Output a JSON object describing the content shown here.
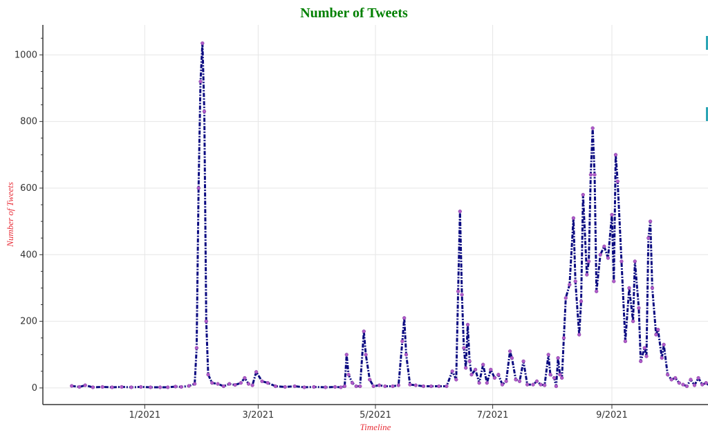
{
  "chart_data": {
    "type": "line",
    "title": "Number of Tweets",
    "xlabel": "Timeline",
    "ylabel": "Number of Tweets",
    "xlim": [
      "2020-11-09",
      "2021-10-21"
    ],
    "ylim": [
      -50,
      1090
    ],
    "x_ticks": [
      {
        "date": "2021-01-01",
        "label": "1/2021"
      },
      {
        "date": "2021-03-01",
        "label": "3/2021"
      },
      {
        "date": "2021-05-01",
        "label": "5/2021"
      },
      {
        "date": "2021-07-01",
        "label": "7/2021"
      },
      {
        "date": "2021-09-01",
        "label": "9/2021"
      }
    ],
    "y_ticks": [
      0,
      200,
      400,
      600,
      800,
      1000
    ],
    "grid": true,
    "colors": {
      "line": "#0a0a80",
      "marker": "#b05bc9",
      "title": "#008000",
      "axis_label": "#e8303a"
    },
    "series": [
      {
        "points": [
          [
            "2020-11-24",
            6
          ],
          [
            "2020-11-28",
            3
          ],
          [
            "2020-12-01",
            8
          ],
          [
            "2020-12-05",
            2
          ],
          [
            "2020-12-10",
            3
          ],
          [
            "2020-12-15",
            2
          ],
          [
            "2020-12-20",
            3
          ],
          [
            "2020-12-25",
            2
          ],
          [
            "2020-12-30",
            3
          ],
          [
            "2021-01-04",
            2
          ],
          [
            "2021-01-09",
            2
          ],
          [
            "2021-01-13",
            2
          ],
          [
            "2021-01-17",
            4
          ],
          [
            "2021-01-20",
            3
          ],
          [
            "2021-01-24",
            6
          ],
          [
            "2021-01-27",
            12
          ],
          [
            "2021-01-28",
            120
          ],
          [
            "2021-01-29",
            600
          ],
          [
            "2021-01-30",
            920
          ],
          [
            "2021-01-31",
            1035
          ],
          [
            "2021-02-01",
            830
          ],
          [
            "2021-02-02",
            200
          ],
          [
            "2021-02-03",
            40
          ],
          [
            "2021-02-05",
            15
          ],
          [
            "2021-02-08",
            12
          ],
          [
            "2021-02-11",
            5
          ],
          [
            "2021-02-14",
            12
          ],
          [
            "2021-02-17",
            9
          ],
          [
            "2021-02-20",
            15
          ],
          [
            "2021-02-22",
            30
          ],
          [
            "2021-02-24",
            12
          ],
          [
            "2021-02-26",
            8
          ],
          [
            "2021-02-28",
            48
          ],
          [
            "2021-03-03",
            20
          ],
          [
            "2021-03-06",
            15
          ],
          [
            "2021-03-10",
            5
          ],
          [
            "2021-03-15",
            3
          ],
          [
            "2021-03-20",
            5
          ],
          [
            "2021-03-25",
            2
          ],
          [
            "2021-03-30",
            3
          ],
          [
            "2021-04-05",
            2
          ],
          [
            "2021-04-10",
            3
          ],
          [
            "2021-04-13",
            2
          ],
          [
            "2021-04-15",
            5
          ],
          [
            "2021-04-16",
            100
          ],
          [
            "2021-04-17",
            40
          ],
          [
            "2021-04-19",
            15
          ],
          [
            "2021-04-21",
            5
          ],
          [
            "2021-04-23",
            5
          ],
          [
            "2021-04-25",
            170
          ],
          [
            "2021-04-26",
            100
          ],
          [
            "2021-04-28",
            25
          ],
          [
            "2021-04-30",
            5
          ],
          [
            "2021-05-03",
            8
          ],
          [
            "2021-05-06",
            5
          ],
          [
            "2021-05-10",
            5
          ],
          [
            "2021-05-13",
            8
          ],
          [
            "2021-05-15",
            140
          ],
          [
            "2021-05-16",
            210
          ],
          [
            "2021-05-17",
            100
          ],
          [
            "2021-05-19",
            10
          ],
          [
            "2021-05-22",
            8
          ],
          [
            "2021-05-26",
            5
          ],
          [
            "2021-05-30",
            5
          ],
          [
            "2021-06-03",
            5
          ],
          [
            "2021-06-07",
            5
          ],
          [
            "2021-06-10",
            50
          ],
          [
            "2021-06-12",
            25
          ],
          [
            "2021-06-13",
            290
          ],
          [
            "2021-06-14",
            530
          ],
          [
            "2021-06-15",
            280
          ],
          [
            "2021-06-16",
            120
          ],
          [
            "2021-06-17",
            60
          ],
          [
            "2021-06-18",
            190
          ],
          [
            "2021-06-19",
            80
          ],
          [
            "2021-06-20",
            40
          ],
          [
            "2021-06-22",
            55
          ],
          [
            "2021-06-24",
            15
          ],
          [
            "2021-06-26",
            70
          ],
          [
            "2021-06-28",
            15
          ],
          [
            "2021-06-30",
            55
          ],
          [
            "2021-07-02",
            30
          ],
          [
            "2021-07-04",
            40
          ],
          [
            "2021-07-06",
            10
          ],
          [
            "2021-07-08",
            20
          ],
          [
            "2021-07-10",
            110
          ],
          [
            "2021-07-11",
            90
          ],
          [
            "2021-07-13",
            25
          ],
          [
            "2021-07-15",
            20
          ],
          [
            "2021-07-17",
            80
          ],
          [
            "2021-07-19",
            10
          ],
          [
            "2021-07-22",
            10
          ],
          [
            "2021-07-24",
            20
          ],
          [
            "2021-07-26",
            10
          ],
          [
            "2021-07-28",
            8
          ],
          [
            "2021-07-30",
            100
          ],
          [
            "2021-07-31",
            40
          ],
          [
            "2021-08-02",
            30
          ],
          [
            "2021-08-03",
            5
          ],
          [
            "2021-08-04",
            90
          ],
          [
            "2021-08-05",
            40
          ],
          [
            "2021-08-06",
            30
          ],
          [
            "2021-08-07",
            150
          ],
          [
            "2021-08-08",
            270
          ],
          [
            "2021-08-10",
            310
          ],
          [
            "2021-08-12",
            510
          ],
          [
            "2021-08-13",
            320
          ],
          [
            "2021-08-15",
            160
          ],
          [
            "2021-08-16",
            260
          ],
          [
            "2021-08-17",
            580
          ],
          [
            "2021-08-19",
            340
          ],
          [
            "2021-08-20",
            380
          ],
          [
            "2021-08-21",
            640
          ],
          [
            "2021-08-22",
            780
          ],
          [
            "2021-08-23",
            640
          ],
          [
            "2021-08-24",
            290
          ],
          [
            "2021-08-26",
            400
          ],
          [
            "2021-08-28",
            425
          ],
          [
            "2021-08-30",
            390
          ],
          [
            "2021-09-01",
            520
          ],
          [
            "2021-09-02",
            320
          ],
          [
            "2021-09-03",
            700
          ],
          [
            "2021-09-04",
            620
          ],
          [
            "2021-09-06",
            380
          ],
          [
            "2021-09-08",
            140
          ],
          [
            "2021-09-10",
            300
          ],
          [
            "2021-09-12",
            200
          ],
          [
            "2021-09-13",
            380
          ],
          [
            "2021-09-15",
            240
          ],
          [
            "2021-09-16",
            80
          ],
          [
            "2021-09-18",
            120
          ],
          [
            "2021-09-19",
            95
          ],
          [
            "2021-09-20",
            450
          ],
          [
            "2021-09-21",
            500
          ],
          [
            "2021-09-22",
            300
          ],
          [
            "2021-09-24",
            160
          ],
          [
            "2021-09-25",
            175
          ],
          [
            "2021-09-27",
            90
          ],
          [
            "2021-09-28",
            130
          ],
          [
            "2021-09-30",
            40
          ],
          [
            "2021-10-02",
            25
          ],
          [
            "2021-10-04",
            30
          ],
          [
            "2021-10-06",
            15
          ],
          [
            "2021-10-08",
            10
          ],
          [
            "2021-10-10",
            5
          ],
          [
            "2021-10-12",
            25
          ],
          [
            "2021-10-14",
            8
          ],
          [
            "2021-10-16",
            30
          ],
          [
            "2021-10-18",
            10
          ],
          [
            "2021-10-20",
            15
          ],
          [
            "2021-10-22",
            5
          ]
        ]
      }
    ]
  }
}
